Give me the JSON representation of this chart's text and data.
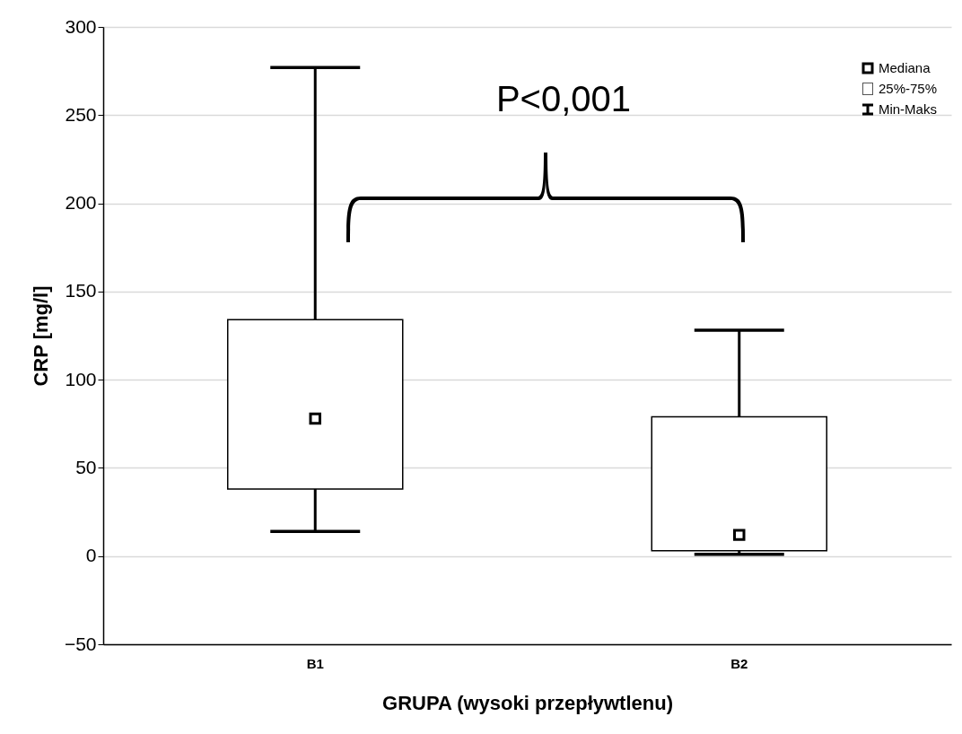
{
  "chart_data": {
    "type": "box",
    "xlabel": "GRUPA (wysoki przepływtlenu)",
    "ylabel": "CRP [mg/l]",
    "categories": [
      "B1",
      "B2"
    ],
    "boxes": [
      {
        "low": 14,
        "q1": 38,
        "median": 78,
        "q3": 134,
        "high": 277
      },
      {
        "low": 1,
        "q1": 3,
        "median": 12,
        "q3": 79,
        "high": 128
      }
    ],
    "ylim": [
      -50,
      300
    ],
    "yticks": [
      -50,
      0,
      50,
      100,
      150,
      200,
      250,
      300
    ],
    "grid": "y",
    "marker": "square",
    "annotations": [
      "P<0,001",
      "Mediana",
      "25%-75%",
      "Min-Maks"
    ]
  }
}
